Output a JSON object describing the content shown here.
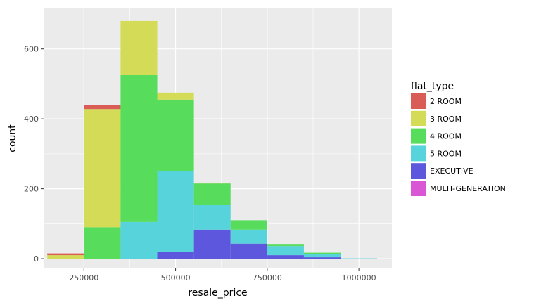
{
  "chart_data": {
    "type": "bar",
    "stacked": true,
    "xlabel": "resale_price",
    "ylabel": "count",
    "x_ticks": [
      250000,
      500000,
      750000,
      1000000
    ],
    "x_tick_labels": [
      "250000",
      "500000",
      "750000",
      "1000000"
    ],
    "y_ticks": [
      0,
      200,
      400,
      600
    ],
    "y_tick_labels": [
      "0",
      "200",
      "400",
      "600"
    ],
    "xlim": [
      140000,
      1090000
    ],
    "ylim": [
      -28,
      716
    ],
    "grid": true,
    "legend_position": "right",
    "legend_title": "flat_type",
    "bins": [
      {
        "start": 150000,
        "end": 250000
      },
      {
        "start": 250000,
        "end": 350000
      },
      {
        "start": 350000,
        "end": 450000
      },
      {
        "start": 450000,
        "end": 550000
      },
      {
        "start": 550000,
        "end": 650000
      },
      {
        "start": 650000,
        "end": 750000
      },
      {
        "start": 750000,
        "end": 850000
      },
      {
        "start": 850000,
        "end": 950000
      },
      {
        "start": 950000,
        "end": 1050000
      }
    ],
    "series": [
      {
        "name": "2 ROOM",
        "color": "#d95c57",
        "values": [
          5,
          12,
          0,
          0,
          0,
          0,
          0,
          0,
          0
        ]
      },
      {
        "name": "3 ROOM",
        "color": "#d4dc57",
        "values": [
          10,
          338,
          155,
          20,
          2,
          0,
          0,
          0,
          0
        ]
      },
      {
        "name": "4 ROOM",
        "color": "#57dc5c",
        "values": [
          0,
          90,
          420,
          205,
          62,
          27,
          6,
          3,
          0
        ]
      },
      {
        "name": "5 ROOM",
        "color": "#57d3dc",
        "values": [
          0,
          0,
          105,
          230,
          70,
          40,
          26,
          10,
          1
        ]
      },
      {
        "name": "EXECUTIVE",
        "color": "#5c57dc",
        "values": [
          0,
          0,
          0,
          20,
          83,
          43,
          10,
          4,
          0
        ]
      },
      {
        "name": "MULTI-GENERATION",
        "color": "#d957d4",
        "values": [
          0,
          0,
          0,
          0,
          0,
          0,
          0,
          0,
          0
        ]
      }
    ]
  }
}
